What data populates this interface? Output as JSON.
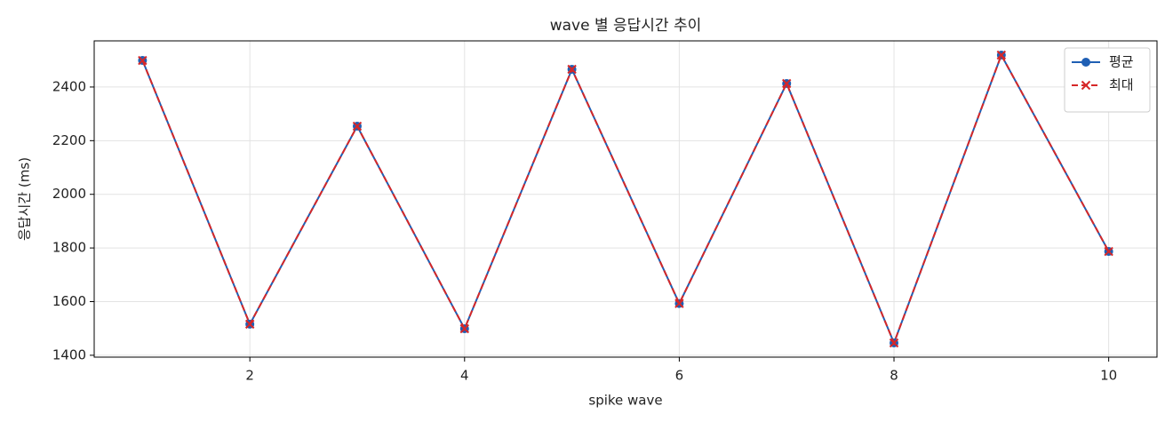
{
  "chart_data": {
    "type": "line",
    "title": "wave 별 응답시간 추이",
    "x_label": "spike wave",
    "y_label": "응답시간 (ms)",
    "x": [
      1,
      2,
      3,
      4,
      5,
      6,
      7,
      8,
      9,
      10
    ],
    "series": [
      {
        "name": "평균",
        "color": "#1f5fb4",
        "marker": "circle",
        "dash": "solid",
        "values": [
          2499,
          1516,
          2254,
          1499,
          2466,
          1593,
          2413,
          1446,
          2519,
          1787
        ]
      },
      {
        "name": "최대",
        "color": "#d62728",
        "marker": "x",
        "dash": "dashed",
        "values": [
          2499,
          1516,
          2254,
          1499,
          2466,
          1593,
          2413,
          1446,
          2519,
          1787
        ]
      }
    ],
    "xlim": [
      0.55,
      10.45
    ],
    "ylim": [
      1393,
      2572
    ],
    "xticks": [
      2,
      4,
      6,
      8,
      10
    ],
    "yticks": [
      1400,
      1600,
      1800,
      2000,
      2200,
      2400
    ],
    "grid": true,
    "legend": "upper right"
  }
}
